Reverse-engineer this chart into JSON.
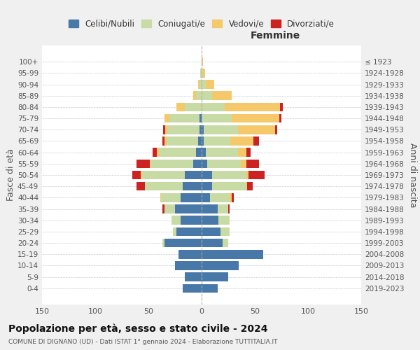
{
  "age_groups": [
    "0-4",
    "5-9",
    "10-14",
    "15-19",
    "20-24",
    "25-29",
    "30-34",
    "35-39",
    "40-44",
    "45-49",
    "50-54",
    "55-59",
    "60-64",
    "65-69",
    "70-74",
    "75-79",
    "80-84",
    "85-89",
    "90-94",
    "95-99",
    "100+"
  ],
  "birth_years": [
    "2019-2023",
    "2014-2018",
    "2009-2013",
    "2004-2008",
    "1999-2003",
    "1994-1998",
    "1989-1993",
    "1984-1988",
    "1979-1983",
    "1974-1978",
    "1969-1973",
    "1964-1968",
    "1959-1963",
    "1954-1958",
    "1949-1953",
    "1944-1948",
    "1939-1943",
    "1934-1938",
    "1929-1933",
    "1924-1928",
    "≤ 1923"
  ],
  "male": {
    "celibi": [
      18,
      16,
      25,
      22,
      35,
      24,
      20,
      25,
      20,
      18,
      16,
      8,
      5,
      3,
      2,
      2,
      0,
      0,
      0,
      0,
      0
    ],
    "coniugati": [
      0,
      0,
      0,
      0,
      2,
      3,
      8,
      10,
      18,
      35,
      40,
      40,
      35,
      30,
      30,
      28,
      16,
      5,
      2,
      1,
      0
    ],
    "vedovi": [
      0,
      0,
      0,
      0,
      0,
      0,
      0,
      0,
      1,
      0,
      1,
      1,
      2,
      2,
      2,
      5,
      8,
      3,
      1,
      0,
      0
    ],
    "divorziati": [
      0,
      0,
      0,
      0,
      0,
      0,
      0,
      2,
      0,
      8,
      8,
      12,
      4,
      2,
      2,
      0,
      0,
      0,
      0,
      0,
      0
    ]
  },
  "female": {
    "nubili": [
      15,
      25,
      35,
      58,
      20,
      18,
      16,
      15,
      8,
      10,
      10,
      5,
      4,
      2,
      2,
      0,
      0,
      0,
      0,
      0,
      0
    ],
    "coniugate": [
      0,
      0,
      0,
      0,
      5,
      8,
      10,
      10,
      18,
      32,
      32,
      32,
      30,
      25,
      32,
      28,
      22,
      10,
      4,
      1,
      0
    ],
    "vedove": [
      0,
      0,
      0,
      0,
      0,
      0,
      0,
      0,
      2,
      1,
      2,
      5,
      8,
      22,
      35,
      45,
      52,
      18,
      8,
      2,
      1
    ],
    "divorziate": [
      0,
      0,
      0,
      0,
      0,
      0,
      0,
      1,
      2,
      5,
      15,
      12,
      4,
      5,
      2,
      2,
      2,
      0,
      0,
      0,
      0
    ]
  },
  "colors": {
    "celibi": "#4878a8",
    "coniugati": "#c8dba4",
    "vedovi": "#f5c96a",
    "divorziati": "#cc2222"
  },
  "xlim": 150,
  "title": "Popolazione per età, sesso e stato civile - 2024",
  "subtitle1": "COMUNE DI DIGNANO (UD) - Dati ISTAT 1° gennaio 2024 - Elaborazione TUTTITALIA.IT",
  "ylabel_left": "Fasce di età",
  "ylabel_right": "Anni di nascita",
  "xlabel_right": "Femmine",
  "bg_color": "#f0f0f0",
  "plot_bg_color": "#ffffff"
}
